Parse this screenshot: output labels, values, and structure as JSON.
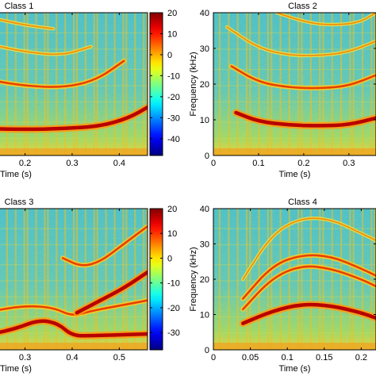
{
  "chart_data": [
    {
      "type": "heatmap",
      "title": "Class 1",
      "xlabel": "Time (s)",
      "ylabel": "",
      "xlim": [
        0.13,
        0.46
      ],
      "ylim": [
        0,
        40
      ],
      "x_ticks": [
        0.2,
        0.3,
        0.4
      ],
      "y_ticks": [],
      "harmonic_arcs": [
        {
          "x": [
            0.13,
            0.2,
            0.28,
            0.36,
            0.42,
            0.46
          ],
          "y": [
            7.5,
            7.3,
            7.5,
            8.2,
            10.5,
            13.5
          ],
          "strength": "strong"
        },
        {
          "x": [
            0.13,
            0.2,
            0.28,
            0.35,
            0.41
          ],
          "y": [
            21,
            19.5,
            19.0,
            21.0,
            26.5
          ],
          "strength": "medium"
        },
        {
          "x": [
            0.13,
            0.2,
            0.28,
            0.34
          ],
          "y": [
            31,
            29.0,
            28.0,
            30.5
          ],
          "strength": "weak"
        },
        {
          "x": [
            0.13,
            0.2,
            0.26
          ],
          "y": [
            38.5,
            36.5,
            35.5
          ],
          "strength": "weak"
        }
      ],
      "colorbar": {
        "ticks": [
          20,
          10,
          0,
          -10,
          -20,
          -30,
          -40
        ],
        "range": [
          -48,
          20
        ]
      }
    },
    {
      "type": "heatmap",
      "title": "Class 2",
      "xlabel": "Time (s)",
      "ylabel": "Frequency (kHz)",
      "xlim": [
        0,
        0.36
      ],
      "ylim": [
        0,
        40
      ],
      "x_ticks": [
        0,
        0.1,
        0.2,
        0.3
      ],
      "y_ticks": [
        0,
        10,
        20,
        30,
        40
      ],
      "harmonic_arcs": [
        {
          "x": [
            0.05,
            0.1,
            0.17,
            0.24,
            0.3,
            0.36
          ],
          "y": [
            12,
            9.5,
            8.5,
            8.3,
            8.6,
            10.5
          ],
          "strength": "strong"
        },
        {
          "x": [
            0.04,
            0.1,
            0.17,
            0.24,
            0.3,
            0.36
          ],
          "y": [
            25,
            20.5,
            19.0,
            18.8,
            19.5,
            22.5
          ],
          "strength": "medium"
        },
        {
          "x": [
            0.03,
            0.1,
            0.17,
            0.24,
            0.3,
            0.36
          ],
          "y": [
            36,
            30.0,
            28.0,
            28.0,
            29.0,
            32.0
          ],
          "strength": "weak"
        },
        {
          "x": [
            0.14,
            0.2,
            0.25,
            0.32,
            0.36
          ],
          "y": [
            40,
            37.5,
            36.5,
            37.0,
            40
          ],
          "strength": "weak"
        }
      ]
    },
    {
      "type": "heatmap",
      "title": "Class 3",
      "xlabel": "Time (s)",
      "ylabel": "",
      "xlim": [
        0.23,
        0.56
      ],
      "ylim": [
        0,
        40
      ],
      "x_ticks": [
        0.3,
        0.4,
        0.5
      ],
      "y_ticks": [],
      "harmonic_arcs": [
        {
          "x": [
            0.23,
            0.28,
            0.33,
            0.37,
            0.4,
            0.44,
            0.56
          ],
          "y": [
            4.5,
            6.0,
            8.5,
            7.5,
            4.0,
            4.0,
            4.5
          ],
          "strength": "strong"
        },
        {
          "x": [
            0.23,
            0.3,
            0.36,
            0.4,
            0.44,
            0.5,
            0.56
          ],
          "y": [
            11,
            12.5,
            12.0,
            9.5,
            11.0,
            12.5,
            14.0
          ],
          "strength": "medium"
        },
        {
          "x": [
            0.41,
            0.46,
            0.51,
            0.56
          ],
          "y": [
            10.5,
            14.0,
            17.5,
            22.0
          ],
          "strength": "strong"
        },
        {
          "x": [
            0.38,
            0.42,
            0.46,
            0.5,
            0.56
          ],
          "y": [
            26,
            23.5,
            25.0,
            29.0,
            35.0
          ],
          "strength": "medium"
        }
      ],
      "colorbar": {
        "ticks": [
          20,
          10,
          0,
          -10,
          -20,
          -30
        ],
        "range": [
          -37,
          20
        ]
      }
    },
    {
      "type": "heatmap",
      "title": "Class 4",
      "xlabel": "Time (s)",
      "ylabel": "Frequency (kHz)",
      "xlim": [
        0,
        0.22
      ],
      "ylim": [
        0,
        40
      ],
      "x_ticks": [
        0,
        0.05,
        0.1,
        0.15,
        0.2
      ],
      "y_ticks": [
        0,
        10,
        20,
        30,
        40
      ],
      "harmonic_arcs": [
        {
          "x": [
            0.04,
            0.08,
            0.12,
            0.16,
            0.2,
            0.22
          ],
          "y": [
            7.5,
            11.0,
            13.0,
            12.5,
            10.5,
            9.0
          ],
          "strength": "strong"
        },
        {
          "x": [
            0.04,
            0.08,
            0.12,
            0.16,
            0.2,
            0.22
          ],
          "y": [
            11.5,
            20.5,
            24.0,
            23.0,
            20.0,
            18.0
          ],
          "strength": "medium"
        },
        {
          "x": [
            0.04,
            0.08,
            0.12,
            0.16,
            0.2,
            0.22
          ],
          "y": [
            14.5,
            24.0,
            27.0,
            26.5,
            23.0,
            21.0
          ],
          "strength": "medium"
        },
        {
          "x": [
            0.04,
            0.08,
            0.12,
            0.16,
            0.2,
            0.22
          ],
          "y": [
            20.0,
            33.0,
            37.5,
            37.0,
            33.0,
            31.0
          ],
          "strength": "weak"
        }
      ]
    }
  ]
}
